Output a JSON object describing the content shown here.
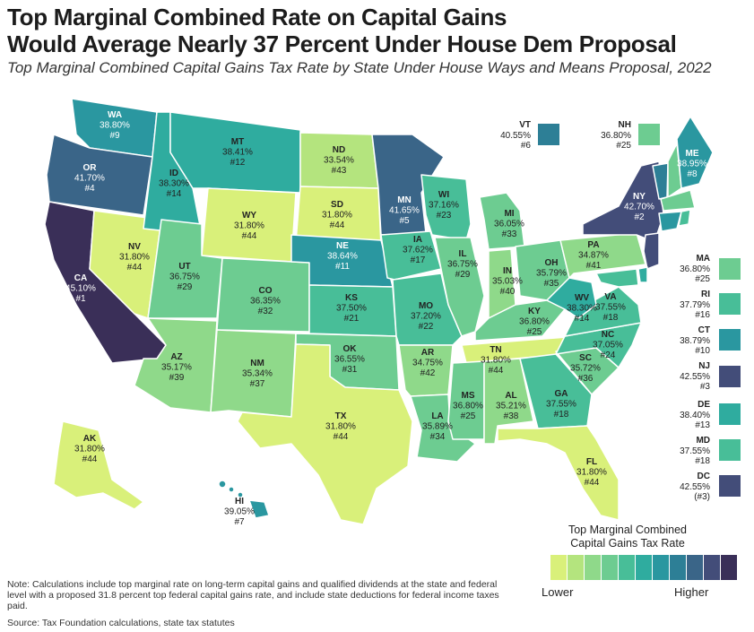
{
  "title_line1": "Top Marginal Combined Rate on Capital Gains",
  "title_line2": "Would Average Nearly 37 Percent Under House Dem Proposal",
  "subtitle": "Top Marginal Combined Capital Gains Tax Rate by State Under House Ways and Means Proposal, 2022",
  "legend": {
    "title_line1": "Top Marginal Combined",
    "title_line2": "Capital Gains Tax Rate",
    "low": "Lower",
    "high": "Higher",
    "colors": [
      "#d9f07a",
      "#b4e47e",
      "#8fd98a",
      "#6dcc91",
      "#48be98",
      "#2fac9f",
      "#2a97a0",
      "#2d7f96",
      "#3a6588",
      "#434d79",
      "#3a2f58"
    ]
  },
  "note": "Note: Calculations include top marginal rate on long-term capital gains and qualified dividends at the state and federal level with a proposed 31.8 percent top federal capital gains rate, and include state deductions for federal income taxes paid.",
  "source": "Source: Tax Foundation calculations, state tax statutes",
  "states": {
    "WA": {
      "code": "WA",
      "rate": "38.80%",
      "rank": "#9",
      "color": "#2a97a0"
    },
    "OR": {
      "code": "OR",
      "rate": "41.70%",
      "rank": "#4",
      "color": "#3a6588"
    },
    "CA": {
      "code": "CA",
      "rate": "45.10%",
      "rank": "#1",
      "color": "#3a2f58"
    },
    "NV": {
      "code": "NV",
      "rate": "31.80%",
      "rank": "#44",
      "color": "#d9f07a"
    },
    "ID": {
      "code": "ID",
      "rate": "38.30%",
      "rank": "#14",
      "color": "#2fac9f"
    },
    "MT": {
      "code": "MT",
      "rate": "38.41%",
      "rank": "#12",
      "color": "#2fac9f"
    },
    "WY": {
      "code": "WY",
      "rate": "31.80%",
      "rank": "#44",
      "color": "#d9f07a"
    },
    "UT": {
      "code": "UT",
      "rate": "36.75%",
      "rank": "#29",
      "color": "#6dcc91"
    },
    "CO": {
      "code": "CO",
      "rate": "36.35%",
      "rank": "#32",
      "color": "#6dcc91"
    },
    "AZ": {
      "code": "AZ",
      "rate": "35.17%",
      "rank": "#39",
      "color": "#8fd98a"
    },
    "NM": {
      "code": "NM",
      "rate": "35.34%",
      "rank": "#37",
      "color": "#8fd98a"
    },
    "ND": {
      "code": "ND",
      "rate": "33.54%",
      "rank": "#43",
      "color": "#b4e47e"
    },
    "SD": {
      "code": "SD",
      "rate": "31.80%",
      "rank": "#44",
      "color": "#d9f07a"
    },
    "NE": {
      "code": "NE",
      "rate": "38.64%",
      "rank": "#11",
      "color": "#2a97a0"
    },
    "KS": {
      "code": "KS",
      "rate": "37.50%",
      "rank": "#21",
      "color": "#48be98"
    },
    "OK": {
      "code": "OK",
      "rate": "36.55%",
      "rank": "#31",
      "color": "#6dcc91"
    },
    "TX": {
      "code": "TX",
      "rate": "31.80%",
      "rank": "#44",
      "color": "#d9f07a"
    },
    "MN": {
      "code": "MN",
      "rate": "41.65%",
      "rank": "#5",
      "color": "#3a6588"
    },
    "IA": {
      "code": "IA",
      "rate": "37.62%",
      "rank": "#17",
      "color": "#48be98"
    },
    "MO": {
      "code": "MO",
      "rate": "37.20%",
      "rank": "#22",
      "color": "#48be98"
    },
    "AR": {
      "code": "AR",
      "rate": "34.75%",
      "rank": "#42",
      "color": "#8fd98a"
    },
    "LA": {
      "code": "LA",
      "rate": "35.89%",
      "rank": "#34",
      "color": "#6dcc91"
    },
    "WI": {
      "code": "WI",
      "rate": "37.16%",
      "rank": "#23",
      "color": "#48be98"
    },
    "IL": {
      "code": "IL",
      "rate": "36.75%",
      "rank": "#29",
      "color": "#6dcc91"
    },
    "MI": {
      "code": "MI",
      "rate": "36.05%",
      "rank": "#33",
      "color": "#6dcc91"
    },
    "IN": {
      "code": "IN",
      "rate": "35.03%",
      "rank": "#40",
      "color": "#8fd98a"
    },
    "OH": {
      "code": "OH",
      "rate": "35.79%",
      "rank": "#35",
      "color": "#6dcc91"
    },
    "KY": {
      "code": "KY",
      "rate": "36.80%",
      "rank": "#25",
      "color": "#6dcc91"
    },
    "TN": {
      "code": "TN",
      "rate": "31.80%",
      "rank": "#44",
      "color": "#d9f07a"
    },
    "MS": {
      "code": "MS",
      "rate": "36.80%",
      "rank": "#25",
      "color": "#6dcc91"
    },
    "AL": {
      "code": "AL",
      "rate": "35.21%",
      "rank": "#38",
      "color": "#8fd98a"
    },
    "GA": {
      "code": "GA",
      "rate": "37.55%",
      "rank": "#18",
      "color": "#48be98"
    },
    "FL": {
      "code": "FL",
      "rate": "31.80%",
      "rank": "#44",
      "color": "#d9f07a"
    },
    "SC": {
      "code": "SC",
      "rate": "35.72%",
      "rank": "#36",
      "color": "#6dcc91"
    },
    "NC": {
      "code": "NC",
      "rate": "37.05%",
      "rank": "#24",
      "color": "#48be98"
    },
    "VA": {
      "code": "VA",
      "rate": "37.55%",
      "rank": "#18",
      "color": "#48be98"
    },
    "WV": {
      "code": "WV",
      "rate": "38.30%",
      "rank": "#14",
      "color": "#2fac9f"
    },
    "PA": {
      "code": "PA",
      "rate": "34.87%",
      "rank": "#41",
      "color": "#8fd98a"
    },
    "NY": {
      "code": "NY",
      "rate": "42.70%",
      "rank": "#2",
      "color": "#434d79"
    },
    "ME": {
      "code": "ME",
      "rate": "38.95%",
      "rank": "#8",
      "color": "#2a97a0"
    },
    "AK": {
      "code": "AK",
      "rate": "31.80%",
      "rank": "#44",
      "color": "#d9f07a"
    },
    "HI": {
      "code": "HI",
      "rate": "39.05%",
      "rank": "#7",
      "color": "#2a97a0"
    }
  },
  "side_states": {
    "VT": {
      "code": "VT",
      "rate": "40.55%",
      "rank": "#6",
      "color": "#2d7f96"
    },
    "NH": {
      "code": "NH",
      "rate": "36.80%",
      "rank": "#25",
      "color": "#6dcc91"
    },
    "MA": {
      "code": "MA",
      "rate": "36.80%",
      "rank": "#25",
      "color": "#6dcc91"
    },
    "RI": {
      "code": "RI",
      "rate": "37.79%",
      "rank": "#16",
      "color": "#48be98"
    },
    "CT": {
      "code": "CT",
      "rate": "38.79%",
      "rank": "#10",
      "color": "#2a97a0"
    },
    "NJ": {
      "code": "NJ",
      "rate": "42.55%",
      "rank": "#3",
      "color": "#434d79"
    },
    "DE": {
      "code": "DE",
      "rate": "38.40%",
      "rank": "#13",
      "color": "#2fac9f"
    },
    "MD": {
      "code": "MD",
      "rate": "37.55%",
      "rank": "#18",
      "color": "#48be98"
    },
    "DC": {
      "code": "DC",
      "rate": "42.55%",
      "rank": "(#3)",
      "color": "#434d79"
    }
  }
}
